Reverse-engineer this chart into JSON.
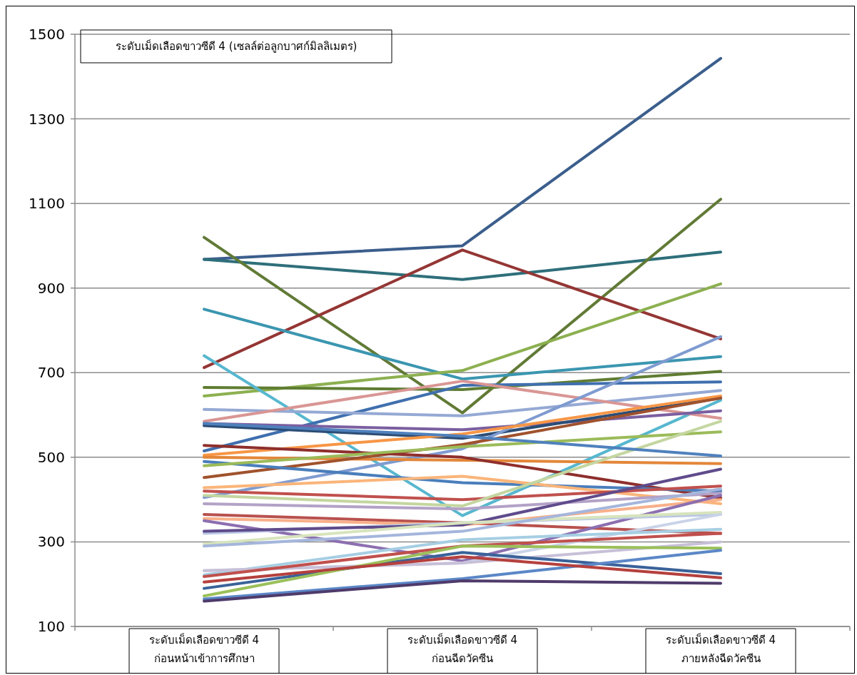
{
  "chart_data": {
    "type": "line",
    "title": "ระดับเม็ดเลือดขาวซีดี 4 (เซลล์ต่อลูกบาศก์มิลลิเมตร)",
    "categories": [
      "ระดับเม็ดเลือดขาวซีดี 4\nก่อนหน้าเข้าการศึกษา",
      "ระดับเม็ดเลือดขาวซีดี 4\nก่อนฉีดวัคซีน",
      "ระดับเม็ดเลือดขาวซีดี 4\nภายหลังฉีดวัคซีน"
    ],
    "ylim": [
      100,
      1500
    ],
    "yticks": [
      100,
      300,
      500,
      700,
      900,
      1100,
      1300,
      1500
    ],
    "grid": "y",
    "marker": "none",
    "line_style": "solid",
    "series": [
      {
        "color": "#3b5e8c",
        "values": [
          968,
          1000,
          1443
        ]
      },
      {
        "color": "#2e6f7a",
        "values": [
          968,
          920,
          985
        ]
      },
      {
        "color": "#617a36",
        "values": [
          1020,
          605,
          1110
        ]
      },
      {
        "color": "#943634",
        "values": [
          712,
          990,
          780
        ]
      },
      {
        "color": "#3b96b0",
        "values": [
          850,
          685,
          738
        ]
      },
      {
        "color": "#8cb050",
        "values": [
          645,
          705,
          910
        ]
      },
      {
        "color": "#5f7d32",
        "values": [
          665,
          660,
          703
        ]
      },
      {
        "color": "#57b7cf",
        "values": [
          740,
          362,
          635
        ]
      },
      {
        "color": "#3f6fae",
        "values": [
          515,
          670,
          678
        ]
      },
      {
        "color": "#95a9d4",
        "values": [
          613,
          598,
          658
        ]
      },
      {
        "color": "#d99694",
        "values": [
          585,
          680,
          592
        ]
      },
      {
        "color": "#7b5fa0",
        "values": [
          580,
          565,
          610
        ]
      },
      {
        "color": "#2c4d75",
        "values": [
          575,
          545,
          640
        ]
      },
      {
        "color": "#7f9bd0",
        "values": [
          405,
          520,
          785
        ]
      },
      {
        "color": "#f79646",
        "values": [
          505,
          555,
          645
        ]
      },
      {
        "color": "#e3873a",
        "values": [
          500,
          493,
          485
        ]
      },
      {
        "color": "#a0522d",
        "values": [
          452,
          530,
          640
        ]
      },
      {
        "color": "#8e2f2c",
        "values": [
          528,
          500,
          404
        ]
      },
      {
        "color": "#4a7ebb",
        "values": [
          490,
          440,
          420
        ]
      },
      {
        "color": "#9bbb59",
        "values": [
          480,
          525,
          560
        ]
      },
      {
        "color": "#fab57a",
        "values": [
          428,
          455,
          390
        ]
      },
      {
        "color": "#c0504d",
        "values": [
          420,
          400,
          432
        ]
      },
      {
        "color": "#c4d6a0",
        "values": [
          410,
          385,
          585
        ]
      },
      {
        "color": "#b3a2c7",
        "values": [
          390,
          378,
          415
        ]
      },
      {
        "color": "#b8514e",
        "values": [
          365,
          345,
          320
        ]
      },
      {
        "color": "#f8b08a",
        "values": [
          355,
          340,
          400
        ]
      },
      {
        "color": "#8c6fb0",
        "values": [
          350,
          255,
          410
        ]
      },
      {
        "color": "#b9c7e4",
        "values": [
          320,
          345,
          365
        ]
      },
      {
        "color": "#5f4b8b",
        "values": [
          325,
          340,
          472
        ]
      },
      {
        "color": "#d7e4bd",
        "values": [
          295,
          345,
          370
        ]
      },
      {
        "color": "#a5b6dc",
        "values": [
          290,
          325,
          425
        ]
      },
      {
        "color": "#c9d3e8",
        "values": [
          232,
          250,
          365
        ]
      },
      {
        "color": "#a6cee3",
        "values": [
          222,
          305,
          330
        ]
      },
      {
        "color": "#c8c0d8",
        "values": [
          232,
          250,
          300
        ]
      },
      {
        "color": "#c0504d",
        "values": [
          218,
          290,
          320
        ]
      },
      {
        "color": "#3a6299",
        "values": [
          190,
          275,
          225
        ]
      },
      {
        "color": "#9bc05a",
        "values": [
          172,
          290,
          285
        ]
      },
      {
        "color": "#5b87c7",
        "values": [
          165,
          213,
          280
        ]
      },
      {
        "color": "#4f3b6b",
        "values": [
          160,
          208,
          202
        ]
      },
      {
        "color": "#b5403d",
        "values": [
          205,
          265,
          215
        ]
      },
      {
        "color": "#4f81bd",
        "values": [
          580,
          550,
          503
        ]
      }
    ]
  }
}
